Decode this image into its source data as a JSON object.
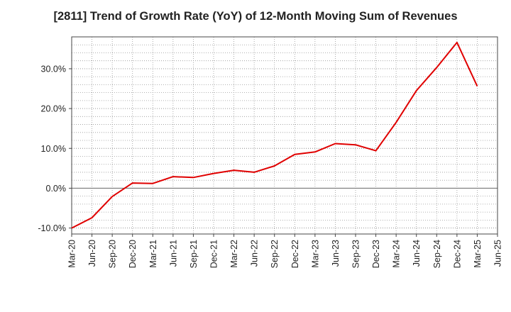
{
  "chart_data": {
    "type": "line",
    "title": "[2811]  Trend of Growth Rate (YoY) of 12-Month Moving Sum of Revenues",
    "xlabel": "",
    "ylabel": "",
    "ylim": [
      -11.5,
      38.0
    ],
    "grid": true,
    "y_ticks": [
      {
        "value": -10,
        "label": "-10.0%"
      },
      {
        "value": 0,
        "label": "0.0%"
      },
      {
        "value": 10,
        "label": "10.0%"
      },
      {
        "value": 20,
        "label": "20.0%"
      },
      {
        "value": 30,
        "label": "30.0%"
      }
    ],
    "x_ticks": [
      "Mar-20",
      "Jun-20",
      "Sep-20",
      "Dec-20",
      "Mar-21",
      "Jun-21",
      "Sep-21",
      "Dec-21",
      "Mar-22",
      "Jun-22",
      "Sep-22",
      "Dec-22",
      "Mar-23",
      "Jun-23",
      "Sep-23",
      "Dec-23",
      "Mar-24",
      "Jun-24",
      "Sep-24",
      "Dec-24",
      "Mar-25",
      "Jun-25"
    ],
    "series": [
      {
        "color": "#e00000",
        "x": [
          "Mar-20",
          "Jun-20",
          "Sep-20",
          "Dec-20",
          "Mar-21",
          "Jun-21",
          "Sep-21",
          "Dec-21",
          "Mar-22",
          "Jun-22",
          "Sep-22",
          "Dec-22",
          "Mar-23",
          "Jun-23",
          "Sep-23",
          "Dec-23",
          "Mar-24",
          "Jun-24",
          "Sep-24",
          "Dec-24",
          "Mar-25"
        ],
        "values": [
          -10.0,
          -7.4,
          -2.1,
          1.3,
          1.2,
          2.9,
          2.7,
          3.7,
          4.5,
          4.0,
          5.6,
          8.5,
          9.1,
          11.2,
          10.9,
          9.4,
          16.5,
          24.5,
          30.3,
          36.6,
          25.6
        ]
      }
    ]
  }
}
